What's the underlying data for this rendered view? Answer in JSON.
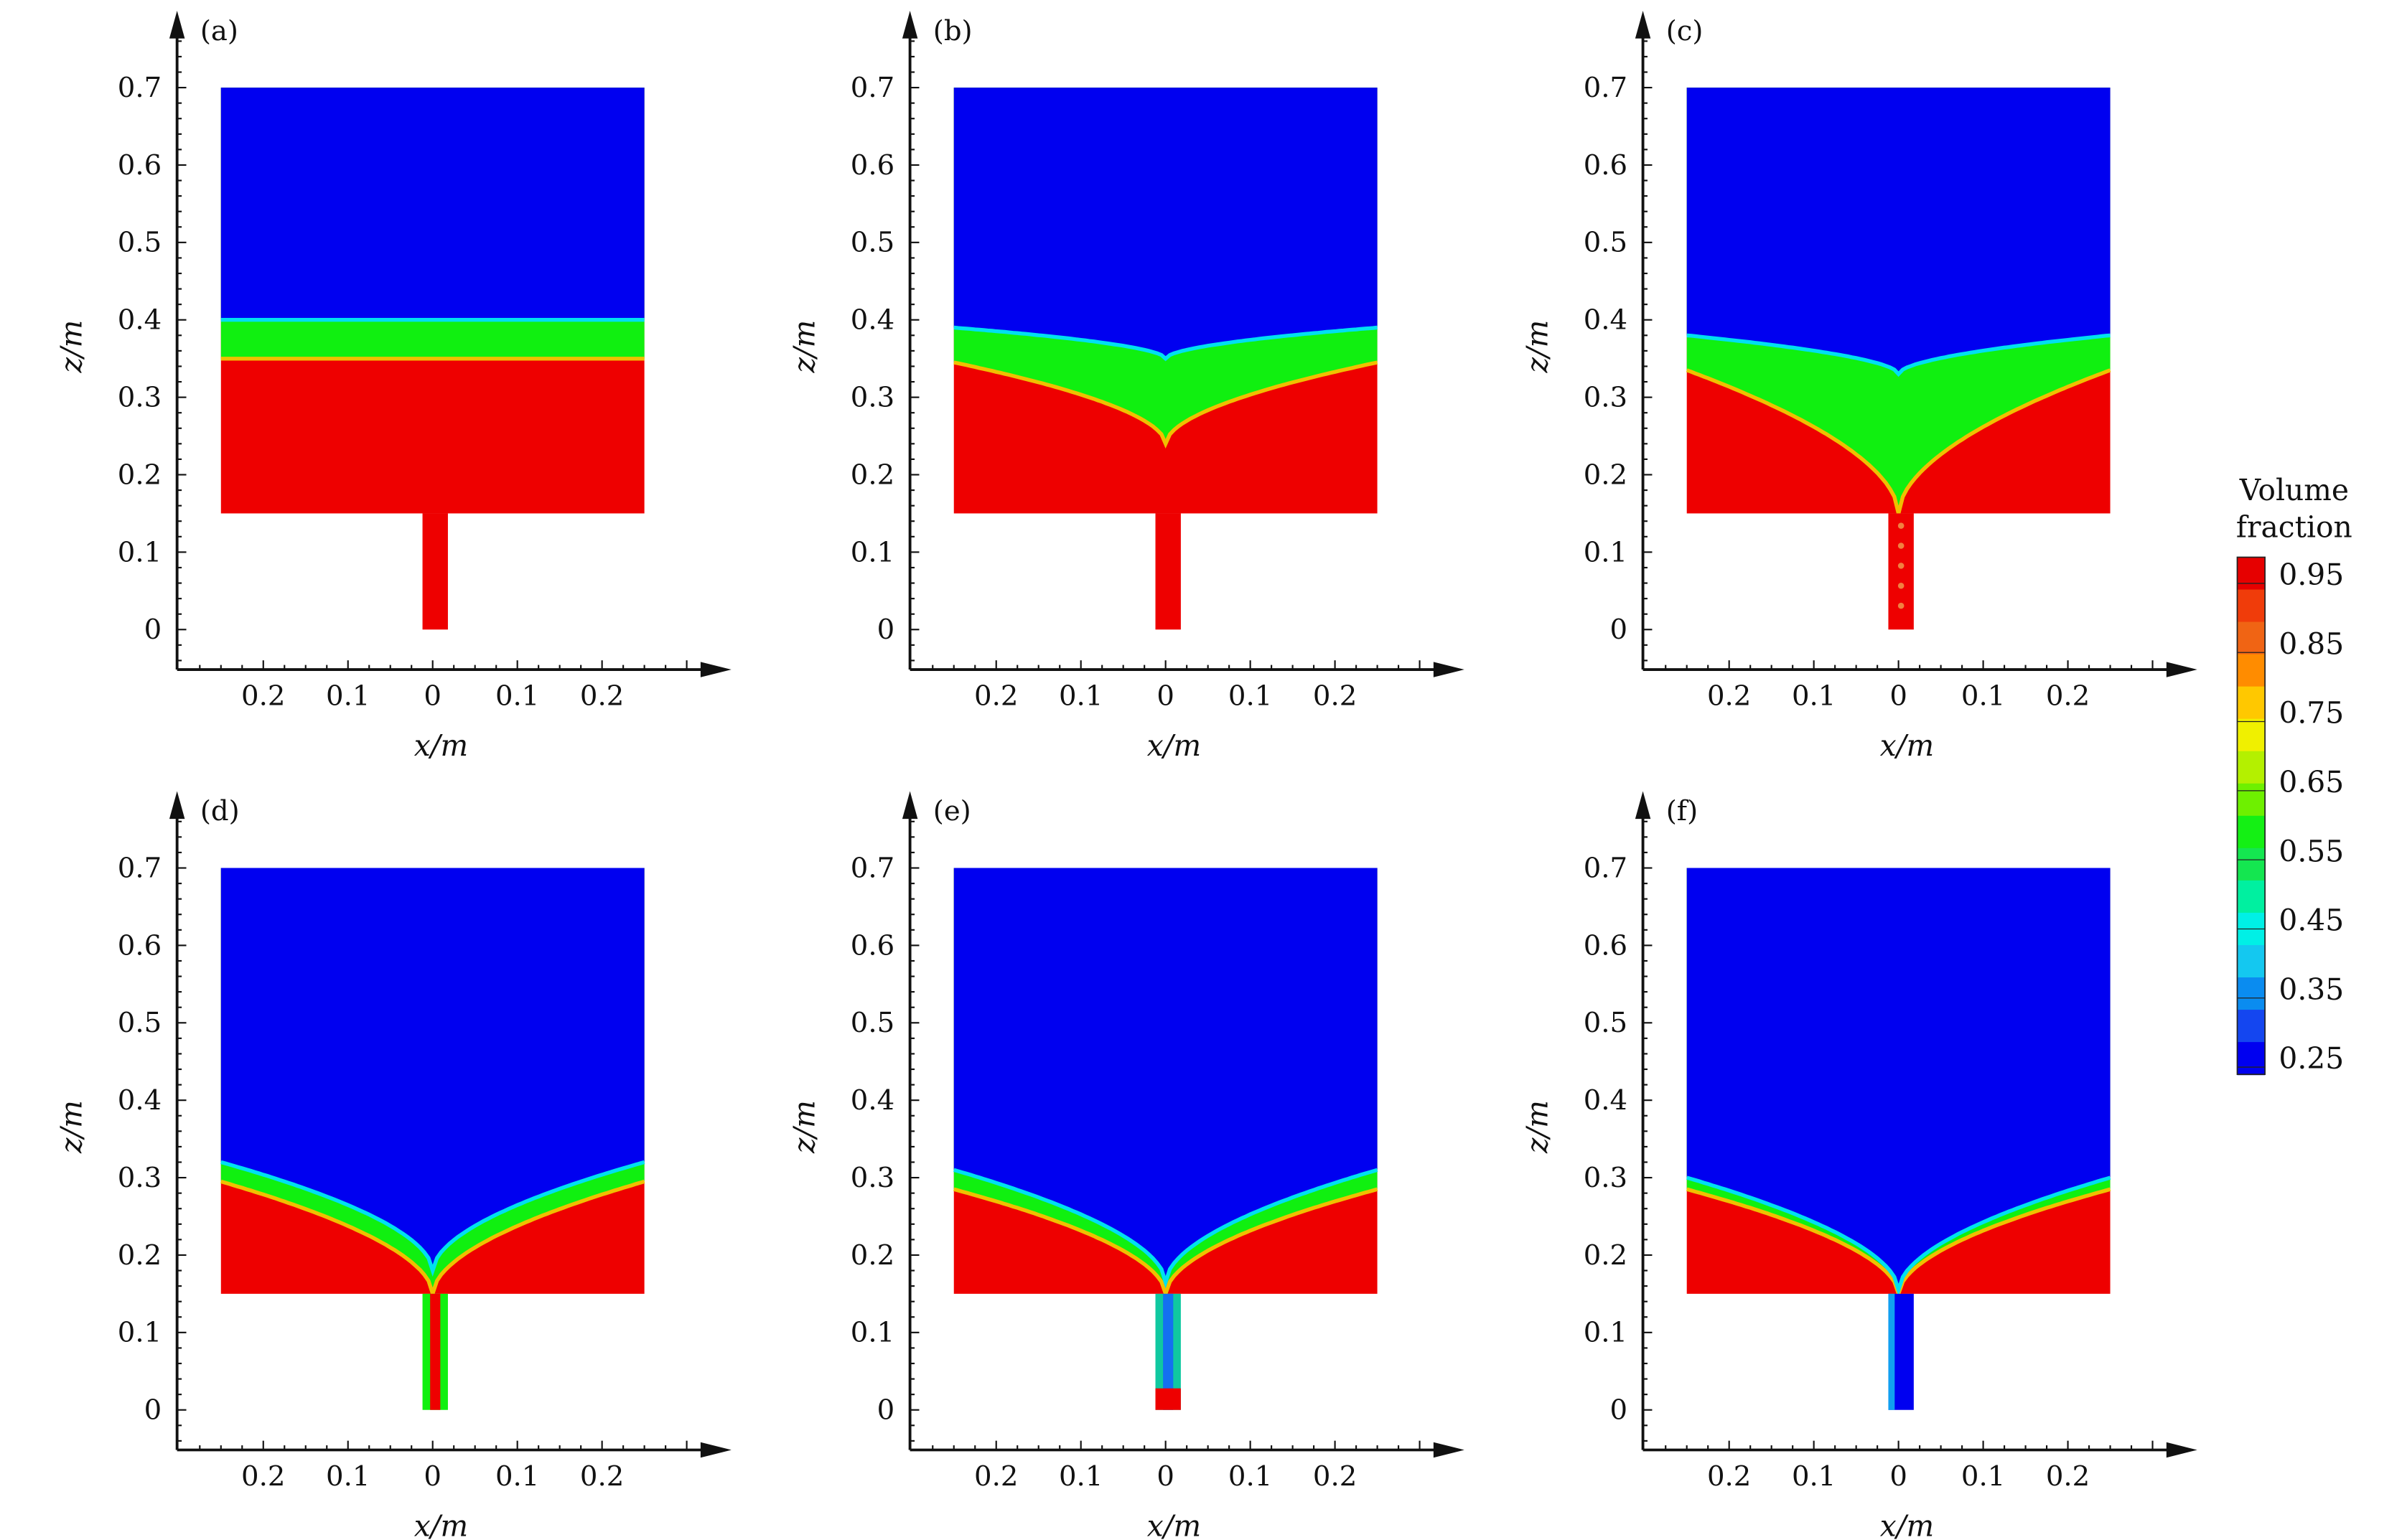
{
  "chart_data": [
    {
      "type": "heatmap",
      "panel_label": "(a)",
      "xlabel": "x/m",
      "ylabel": "z/m",
      "x_ticks": [
        "0.2",
        "0.1",
        "0",
        "0.1",
        "0.2"
      ],
      "y_ticks": [
        "0",
        "0.1",
        "0.2",
        "0.3",
        "0.4",
        "0.5",
        "0.6",
        "0.7"
      ],
      "xlim": [
        -0.3,
        0.35
      ],
      "ylim": [
        -0.05,
        0.78
      ],
      "tank": {
        "x": [
          -0.25,
          0.25
        ],
        "z": [
          0.15,
          0.7
        ]
      },
      "nozzle": {
        "x": [
          -0.012,
          0.018
        ],
        "z": [
          0,
          0.15
        ]
      },
      "upper_interface": {
        "edge_z": 0.4,
        "center_z": 0.4
      },
      "lower_interface": {
        "edge_z": 0.35,
        "center_z": 0.35
      },
      "nozzle_fill": "liquid"
    },
    {
      "type": "heatmap",
      "panel_label": "(b)",
      "xlabel": "x/m",
      "ylabel": "z/m",
      "x_ticks": [
        "0.2",
        "0.1",
        "0",
        "0.1",
        "0.2"
      ],
      "y_ticks": [
        "0",
        "0.1",
        "0.2",
        "0.3",
        "0.4",
        "0.5",
        "0.6",
        "0.7"
      ],
      "xlim": [
        -0.3,
        0.35
      ],
      "ylim": [
        -0.05,
        0.78
      ],
      "tank": {
        "x": [
          -0.25,
          0.25
        ],
        "z": [
          0.15,
          0.7
        ]
      },
      "nozzle": {
        "x": [
          -0.012,
          0.018
        ],
        "z": [
          0,
          0.15
        ]
      },
      "upper_interface": {
        "edge_z": 0.39,
        "center_z": 0.35
      },
      "lower_interface": {
        "edge_z": 0.345,
        "center_z": 0.24
      },
      "nozzle_fill": "liquid"
    },
    {
      "type": "heatmap",
      "panel_label": "(c)",
      "xlabel": "x/m",
      "ylabel": "z/m",
      "x_ticks": [
        "0.2",
        "0.1",
        "0",
        "0.1",
        "0.2"
      ],
      "y_ticks": [
        "0",
        "0.1",
        "0.2",
        "0.3",
        "0.4",
        "0.5",
        "0.6",
        "0.7"
      ],
      "xlim": [
        -0.3,
        0.35
      ],
      "ylim": [
        -0.05,
        0.78
      ],
      "tank": {
        "x": [
          -0.25,
          0.25
        ],
        "z": [
          0.15,
          0.7
        ]
      },
      "nozzle": {
        "x": [
          -0.012,
          0.018
        ],
        "z": [
          0,
          0.15
        ]
      },
      "upper_interface": {
        "edge_z": 0.38,
        "center_z": 0.33
      },
      "lower_interface": {
        "edge_z": 0.335,
        "center_z": 0.15
      },
      "nozzle_fill": "liquid-mixed"
    },
    {
      "type": "heatmap",
      "panel_label": "(d)",
      "xlabel": "x/m",
      "ylabel": "z/m",
      "x_ticks": [
        "0.2",
        "0.1",
        "0",
        "0.1",
        "0.2"
      ],
      "y_ticks": [
        "0",
        "0.1",
        "0.2",
        "0.3",
        "0.4",
        "0.5",
        "0.6",
        "0.7"
      ],
      "xlim": [
        -0.3,
        0.35
      ],
      "ylim": [
        -0.05,
        0.78
      ],
      "tank": {
        "x": [
          -0.25,
          0.25
        ],
        "z": [
          0.15,
          0.7
        ]
      },
      "nozzle": {
        "x": [
          -0.012,
          0.018
        ],
        "z": [
          0,
          0.15
        ]
      },
      "upper_interface": {
        "edge_z": 0.32,
        "center_z": 0.18
      },
      "lower_interface": {
        "edge_z": 0.295,
        "center_z": 0.15
      },
      "nozzle_fill": "mixed"
    },
    {
      "type": "heatmap",
      "panel_label": "(e)",
      "xlabel": "x/m",
      "ylabel": "z/m",
      "x_ticks": [
        "0.2",
        "0.1",
        "0",
        "0.1",
        "0.2"
      ],
      "y_ticks": [
        "0",
        "0.1",
        "0.2",
        "0.3",
        "0.4",
        "0.5",
        "0.6",
        "0.7"
      ],
      "xlim": [
        -0.3,
        0.35
      ],
      "ylim": [
        -0.05,
        0.78
      ],
      "tank": {
        "x": [
          -0.25,
          0.25
        ],
        "z": [
          0.15,
          0.7
        ]
      },
      "nozzle": {
        "x": [
          -0.012,
          0.018
        ],
        "z": [
          0,
          0.15
        ]
      },
      "upper_interface": {
        "edge_z": 0.31,
        "center_z": 0.165
      },
      "lower_interface": {
        "edge_z": 0.285,
        "center_z": 0.15
      },
      "nozzle_fill": "mixed-gas"
    },
    {
      "type": "heatmap",
      "panel_label": "(f)",
      "xlabel": "x/m",
      "ylabel": "z/m",
      "x_ticks": [
        "0.2",
        "0.1",
        "0",
        "0.1",
        "0.2"
      ],
      "y_ticks": [
        "0",
        "0.1",
        "0.2",
        "0.3",
        "0.4",
        "0.5",
        "0.6",
        "0.7"
      ],
      "xlim": [
        -0.3,
        0.35
      ],
      "ylim": [
        -0.05,
        0.78
      ],
      "tank": {
        "x": [
          -0.25,
          0.25
        ],
        "z": [
          0.15,
          0.7
        ]
      },
      "nozzle": {
        "x": [
          -0.012,
          0.018
        ],
        "z": [
          0,
          0.15
        ]
      },
      "upper_interface": {
        "edge_z": 0.3,
        "center_z": 0.155
      },
      "lower_interface": {
        "edge_z": 0.285,
        "center_z": 0.15
      },
      "nozzle_fill": "gas"
    }
  ],
  "colorbar": {
    "title_line1": "Volume",
    "title_line2": "fraction",
    "tick_labels": [
      "0.95",
      "0.85",
      "0.75",
      "0.65",
      "0.55",
      "0.45",
      "0.35",
      "0.25"
    ],
    "colors": [
      "#e60000",
      "#f03c0a",
      "#f06414",
      "#ff8c00",
      "#ffc800",
      "#f0f000",
      "#b4f000",
      "#6ef000",
      "#14f014",
      "#14e650",
      "#00f0a0",
      "#00f0e6",
      "#14c8f0",
      "#0a8cf0",
      "#1446f0",
      "#0000f0"
    ]
  },
  "colors": {
    "gas": "#0000f0",
    "liquid": "#ee0000",
    "mixed": "#10f010",
    "interface_upper": "#00e0f0",
    "interface_lower": "#f0c000"
  }
}
